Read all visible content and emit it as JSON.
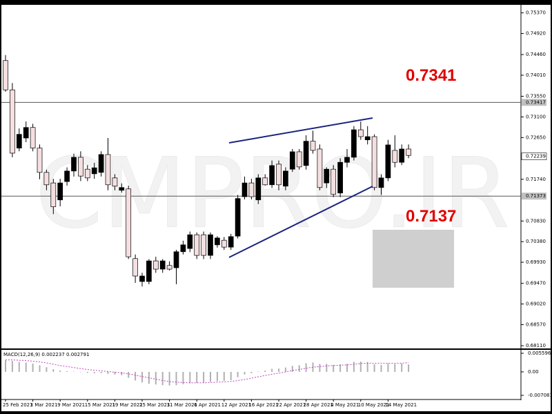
{
  "chart_data": [
    {
      "type": "candlestick",
      "watermark": "CMPRO.IR",
      "categories": [
        "25 Feb 2021",
        null,
        null,
        null,
        "3 Mar 2021",
        null,
        null,
        null,
        "9 Mar 2021",
        null,
        null,
        null,
        "15 Mar 2021",
        null,
        null,
        null,
        "19 Mar 2021",
        null,
        null,
        null,
        "25 Mar 2021",
        null,
        null,
        null,
        "31 Mar 2021",
        null,
        null,
        null,
        "6 Apr 2021",
        null,
        null,
        null,
        "12 Apr 2021",
        null,
        null,
        null,
        "16 Apr 2021",
        null,
        null,
        null,
        "22 Apr 2021",
        null,
        null,
        null,
        "28 Apr 2021",
        null,
        null,
        null,
        "4 May 2021",
        null,
        null,
        null,
        "10 May 2021",
        null,
        null,
        null,
        "14 May 2021",
        null,
        null,
        null
      ],
      "open": [
        0.7433,
        0.7369,
        0.7242,
        0.7264,
        0.7287,
        0.7242,
        0.7189,
        0.7166,
        0.7129,
        0.7169,
        0.7192,
        0.7222,
        0.7196,
        0.7186,
        0.7189,
        0.7228,
        0.7177,
        0.715,
        0.7153,
        0.7001,
        0.6951,
        0.6951,
        0.6996,
        0.6978,
        0.6986,
        0.6981,
        0.7016,
        0.7023,
        0.7053,
        0.7053,
        0.7008,
        0.7031,
        0.7041,
        0.7026,
        0.705,
        0.7136,
        0.7166,
        0.7129,
        0.7177,
        0.7162,
        0.7207,
        0.7159,
        0.7196,
        0.7234,
        0.7204,
        0.7257,
        0.724,
        0.7166,
        0.7196,
        0.7144,
        0.7211,
        0.7222,
        0.7282,
        0.726,
        0.7267,
        0.7156,
        0.7177,
        0.7237,
        0.7211,
        0.724
      ],
      "high": [
        0.7445,
        0.7384,
        0.7285,
        0.73,
        0.7295,
        0.725,
        0.7195,
        0.7175,
        0.7175,
        0.72,
        0.723,
        0.7235,
        0.7205,
        0.721,
        0.7235,
        0.7264,
        0.7185,
        0.7165,
        0.716,
        0.701,
        0.697,
        0.7,
        0.7005,
        0.7,
        0.6995,
        0.702,
        0.704,
        0.706,
        0.7058,
        0.706,
        0.7058,
        0.705,
        0.7048,
        0.7055,
        0.714,
        0.718,
        0.7175,
        0.7185,
        0.7185,
        0.7215,
        0.7215,
        0.72,
        0.724,
        0.724,
        0.727,
        0.728,
        0.725,
        0.72,
        0.7205,
        0.722,
        0.724,
        0.729,
        0.73,
        0.729,
        0.7272,
        0.7185,
        0.726,
        0.727,
        0.725,
        0.725
      ],
      "low": [
        0.7365,
        0.7222,
        0.7235,
        0.7255,
        0.7235,
        0.7174,
        0.715,
        0.7098,
        0.7115,
        0.716,
        0.718,
        0.717,
        0.717,
        0.7175,
        0.718,
        0.715,
        0.715,
        0.7145,
        0.7,
        0.6948,
        0.694,
        0.6945,
        0.697,
        0.697,
        0.6975,
        0.6945,
        0.701,
        0.7015,
        0.7,
        0.7,
        0.7,
        0.7025,
        0.702,
        0.702,
        0.7045,
        0.713,
        0.713,
        0.712,
        0.716,
        0.7155,
        0.715,
        0.715,
        0.719,
        0.7195,
        0.7195,
        0.723,
        0.715,
        0.7155,
        0.7135,
        0.7135,
        0.72,
        0.7215,
        0.726,
        0.725,
        0.715,
        0.714,
        0.717,
        0.72,
        0.7205,
        0.722
      ],
      "close": [
        0.7369,
        0.7231,
        0.7272,
        0.7287,
        0.7242,
        0.7189,
        0.7162,
        0.7114,
        0.7166,
        0.7192,
        0.7222,
        0.7181,
        0.7177,
        0.7199,
        0.7228,
        0.7162,
        0.7159,
        0.7156,
        0.7005,
        0.6963,
        0.6963,
        0.6996,
        0.6978,
        0.6996,
        0.6978,
        0.7016,
        0.7031,
        0.7053,
        0.7008,
        0.7008,
        0.7053,
        0.7046,
        0.7026,
        0.7049,
        0.7132,
        0.7166,
        0.7136,
        0.7177,
        0.7162,
        0.7204,
        0.7162,
        0.7192,
        0.7234,
        0.7201,
        0.7257,
        0.7237,
        0.7156,
        0.7196,
        0.7141,
        0.7211,
        0.7222,
        0.7282,
        0.7267,
        0.7267,
        0.7156,
        0.7177,
        0.7249,
        0.7211,
        0.724,
        0.7226
      ],
      "up_color": "#000000",
      "down_color": "#f5dfe0",
      "ylim": [
        0.6805,
        0.7553
      ],
      "yticks": [
        {
          "value": 0.7537,
          "label": "0.75370"
        },
        {
          "value": 0.7492,
          "label": "0.74920"
        },
        {
          "value": 0.7446,
          "label": "0.74460"
        },
        {
          "value": 0.7401,
          "label": "0.74010"
        },
        {
          "value": 0.7355,
          "label": "0.73550"
        },
        {
          "value": 0.731,
          "label": "0.73100"
        },
        {
          "value": 0.7265,
          "label": "0.72650"
        },
        {
          "value": 0.7174,
          "label": "0.71740"
        },
        {
          "value": 0.7083,
          "label": "0.70830"
        },
        {
          "value": 0.7038,
          "label": "0.70380"
        },
        {
          "value": 0.6993,
          "label": "0.69930"
        },
        {
          "value": 0.6947,
          "label": "0.69470"
        },
        {
          "value": 0.6902,
          "label": "0.69020"
        },
        {
          "value": 0.6857,
          "label": "0.68570"
        },
        {
          "value": 0.6811,
          "label": "0.68110"
        }
      ],
      "hlines": [
        0.73417,
        0.71373
      ],
      "current_price": 0.72239,
      "annotations": [
        {
          "text": "0.7341",
          "value": 0.7341
        },
        {
          "text": "0.7137",
          "value": 0.7137
        }
      ]
    },
    {
      "type": "macd",
      "title": "MACD(12,26,9) 0.002237 0.002791",
      "histogram": [
        0.0035,
        0.0033,
        0.003,
        0.0028,
        0.0025,
        0.002,
        0.0014,
        0.0008,
        0.0004,
        0.0002,
        0.0001,
        -0.0001,
        -0.0003,
        -0.0004,
        -0.0004,
        -0.0006,
        -0.0008,
        -0.001,
        -0.0018,
        -0.0026,
        -0.0032,
        -0.0036,
        -0.0038,
        -0.004,
        -0.0041,
        -0.004,
        -0.0037,
        -0.0034,
        -0.0033,
        -0.0032,
        -0.003,
        -0.0028,
        -0.0027,
        -0.0025,
        -0.0016,
        -0.0008,
        -0.0004,
        0.0001,
        0.0004,
        0.0009,
        0.001,
        0.0013,
        0.0018,
        0.002,
        0.0026,
        0.0028,
        0.0024,
        0.0024,
        0.0021,
        0.0023,
        0.0024,
        0.003,
        0.0031,
        0.003,
        0.0023,
        0.0021,
        0.0025,
        0.0024,
        0.0025,
        0.002237
      ],
      "signal": [
        0.0036,
        0.0036,
        0.0035,
        0.0034,
        0.0032,
        0.003,
        0.0027,
        0.0023,
        0.0019,
        0.0016,
        0.0013,
        0.001,
        0.0007,
        0.0005,
        0.0003,
        0.0001,
        -0.0001,
        -0.0003,
        -0.0006,
        -0.001,
        -0.0014,
        -0.0018,
        -0.0022,
        -0.0026,
        -0.0029,
        -0.0031,
        -0.0032,
        -0.0033,
        -0.0033,
        -0.0033,
        -0.0032,
        -0.0031,
        -0.003,
        -0.0029,
        -0.0026,
        -0.0023,
        -0.0019,
        -0.0015,
        -0.0011,
        -0.0007,
        -0.0004,
        0,
        0.0004,
        0.0007,
        0.0011,
        0.0014,
        0.0016,
        0.0018,
        0.0019,
        0.002,
        0.0021,
        0.0023,
        0.0025,
        0.0026,
        0.0026,
        0.0026,
        0.0026,
        0.0026,
        0.0026,
        0.002791
      ],
      "histogram_color": "#b0b0b0",
      "signal_color": "#c040c0",
      "ylim": [
        -0.00812,
        0.00643
      ],
      "yticks": [
        0.005596,
        {
          "value": 0,
          "label": "0.00"
        },
        -0.007081
      ]
    }
  ]
}
